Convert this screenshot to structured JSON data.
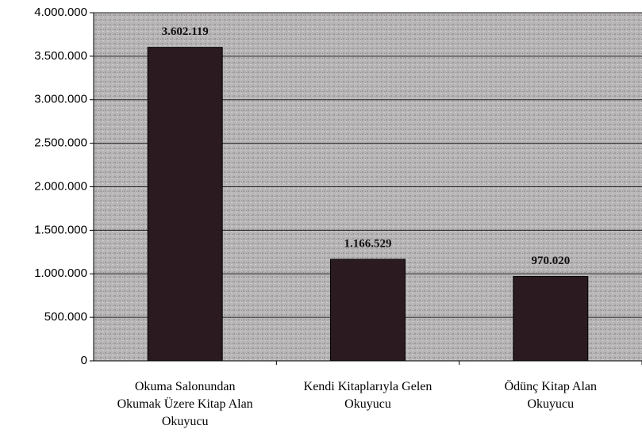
{
  "chart_data": {
    "type": "bar",
    "categories": [
      [
        "Okuma Salonundan",
        "Okumak Üzere Kitap Alan",
        "Okuyucu"
      ],
      [
        "Kendi Kitaplarıyla Gelen",
        "Okuyucu"
      ],
      [
        "Ödünç Kitap Alan",
        "Okuyucu"
      ]
    ],
    "values": [
      3602119,
      1166529,
      970020
    ],
    "value_labels": [
      "3.602.119",
      "1.166.529",
      "970.020"
    ],
    "color": "#2b1b20",
    "ylim": [
      0,
      4000000
    ],
    "yticks": [
      0,
      {
        "value": 500000,
        "label": "500.000"
      },
      {
        "value": 1000000,
        "label": "1.000.000"
      },
      {
        "value": 1500000,
        "label": "1.500.000"
      },
      {
        "value": 2000000,
        "label": "2.000.000"
      },
      {
        "value": 2500000,
        "label": "2.500.000"
      },
      {
        "value": 3000000,
        "label": "3.000.000"
      },
      {
        "value": 3500000,
        "label": "3.500.000"
      },
      {
        "value": 4000000,
        "label": "4.000.000"
      }
    ],
    "grid": true
  }
}
